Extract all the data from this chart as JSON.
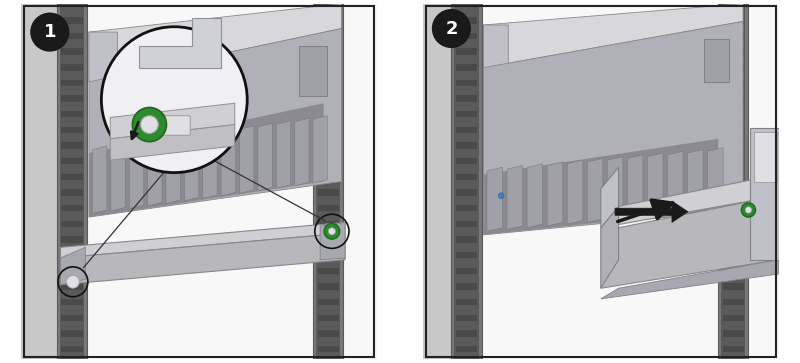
{
  "figsize": [
    8.0,
    3.63
  ],
  "dpi": 100,
  "bg_color": "#ffffff",
  "panel1_bg": "#ffffff",
  "panel2_bg": "#ffffff",
  "rack_dark": "#5a5a5a",
  "rack_mid": "#787878",
  "rack_light": "#999999",
  "rack_slot": "#4a4a4a",
  "server_top": "#d8d8dc",
  "server_side": "#c0c0c8",
  "server_front": "#b0b0b8",
  "server_dark": "#909098",
  "bracket_top": "#d0d0d4",
  "bracket_side": "#b8b8bc",
  "bracket_front": "#c8c8cc",
  "slot_color": "#888890",
  "slot_dark": "#707078",
  "green_ring": "#2d8a2d",
  "green_dark": "#1a6a1a",
  "arrow_black": "#1a1a1a",
  "badge_bg": "#1a1a1a",
  "badge_fg": "#ffffff",
  "zoom_bg": "#f0f0f4",
  "zoom_border": "#111111",
  "line_color": "#333333",
  "screw_body": "#e0e0e4",
  "screw_dark": "#a0a0a8"
}
